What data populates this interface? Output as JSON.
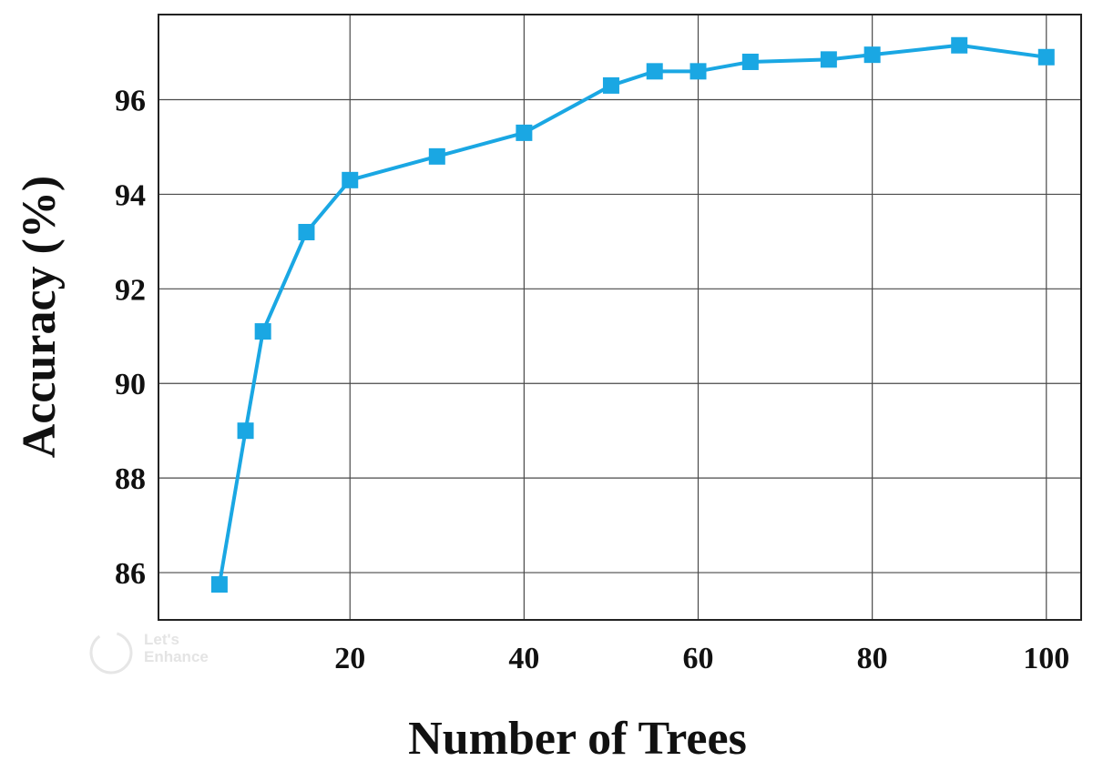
{
  "chart_data": {
    "type": "line",
    "title": "",
    "xlabel": "Number of Trees",
    "ylabel": "Accuracy (%)",
    "xlim": [
      -2,
      104
    ],
    "ylim": [
      85,
      97.8
    ],
    "xticks": [
      20,
      40,
      60,
      80,
      100
    ],
    "yticks": [
      86,
      88,
      90,
      92,
      94,
      96
    ],
    "grid": true,
    "legend": "none",
    "series": [
      {
        "color": "#1aa7e3",
        "marker": "square",
        "x": [
          5,
          8,
          10,
          15,
          20,
          30,
          40,
          50,
          55,
          60,
          66,
          75,
          80,
          90,
          100
        ],
        "y": [
          85.75,
          89.0,
          91.1,
          93.2,
          94.3,
          94.8,
          95.3,
          96.3,
          96.6,
          96.6,
          96.8,
          96.85,
          96.95,
          97.15,
          96.9
        ]
      }
    ]
  },
  "watermark": {
    "line1": "Let's",
    "line2": "Enhance"
  }
}
